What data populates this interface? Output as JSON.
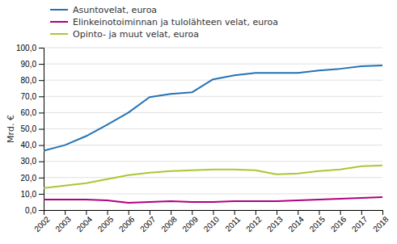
{
  "chart_data": {
    "type": "line",
    "ylabel": "Mrd. €",
    "x": [
      2002,
      2003,
      2004,
      2005,
      2006,
      2007,
      2008,
      2009,
      2010,
      2011,
      2012,
      2013,
      2014,
      2015,
      2016,
      2017,
      2018
    ],
    "xlim": [
      2002,
      2018
    ],
    "xticks": [
      2002,
      2003,
      2004,
      2005,
      2006,
      2007,
      2008,
      2009,
      2010,
      2011,
      2012,
      2013,
      2014,
      2015,
      2016,
      2017,
      2018
    ],
    "ylim": [
      0,
      100
    ],
    "yticks": [
      {
        "value": 0,
        "label": "0,0"
      },
      {
        "value": 10,
        "label": "10,0"
      },
      {
        "value": 20,
        "label": "20,0"
      },
      {
        "value": 30,
        "label": "30,0"
      },
      {
        "value": 40,
        "label": "40,0"
      },
      {
        "value": 50,
        "label": "50,0"
      },
      {
        "value": 60,
        "label": "60,0"
      },
      {
        "value": 70,
        "label": "70,0"
      },
      {
        "value": 80,
        "label": "80,0"
      },
      {
        "value": 90,
        "label": "90,0"
      },
      {
        "value": 100,
        "label": "100,0"
      }
    ],
    "grid": true,
    "series": [
      {
        "name": "Asuntovelat, euroa",
        "color": "#2472B4",
        "values": [
          36.5,
          40.0,
          45.5,
          52.5,
          60.0,
          69.5,
          71.5,
          72.5,
          80.5,
          83.0,
          84.5,
          84.5,
          84.5,
          86.0,
          87.0,
          88.5,
          89.0
        ]
      },
      {
        "name": "Elinkeinotoiminnan ja tulolähteen velat, euroa",
        "color": "#B0007F",
        "values": [
          6.5,
          6.5,
          6.5,
          6.0,
          4.5,
          5.0,
          5.5,
          5.0,
          5.0,
          5.5,
          5.5,
          5.5,
          6.0,
          6.5,
          7.0,
          7.5,
          8.0
        ]
      },
      {
        "name": "Opinto- ja muut velat, euroa",
        "color": "#A8C832",
        "values": [
          13.5,
          15.0,
          16.5,
          19.0,
          21.5,
          23.0,
          24.0,
          24.5,
          25.0,
          25.0,
          24.5,
          22.0,
          22.5,
          24.0,
          25.0,
          27.0,
          27.5
        ]
      }
    ]
  }
}
